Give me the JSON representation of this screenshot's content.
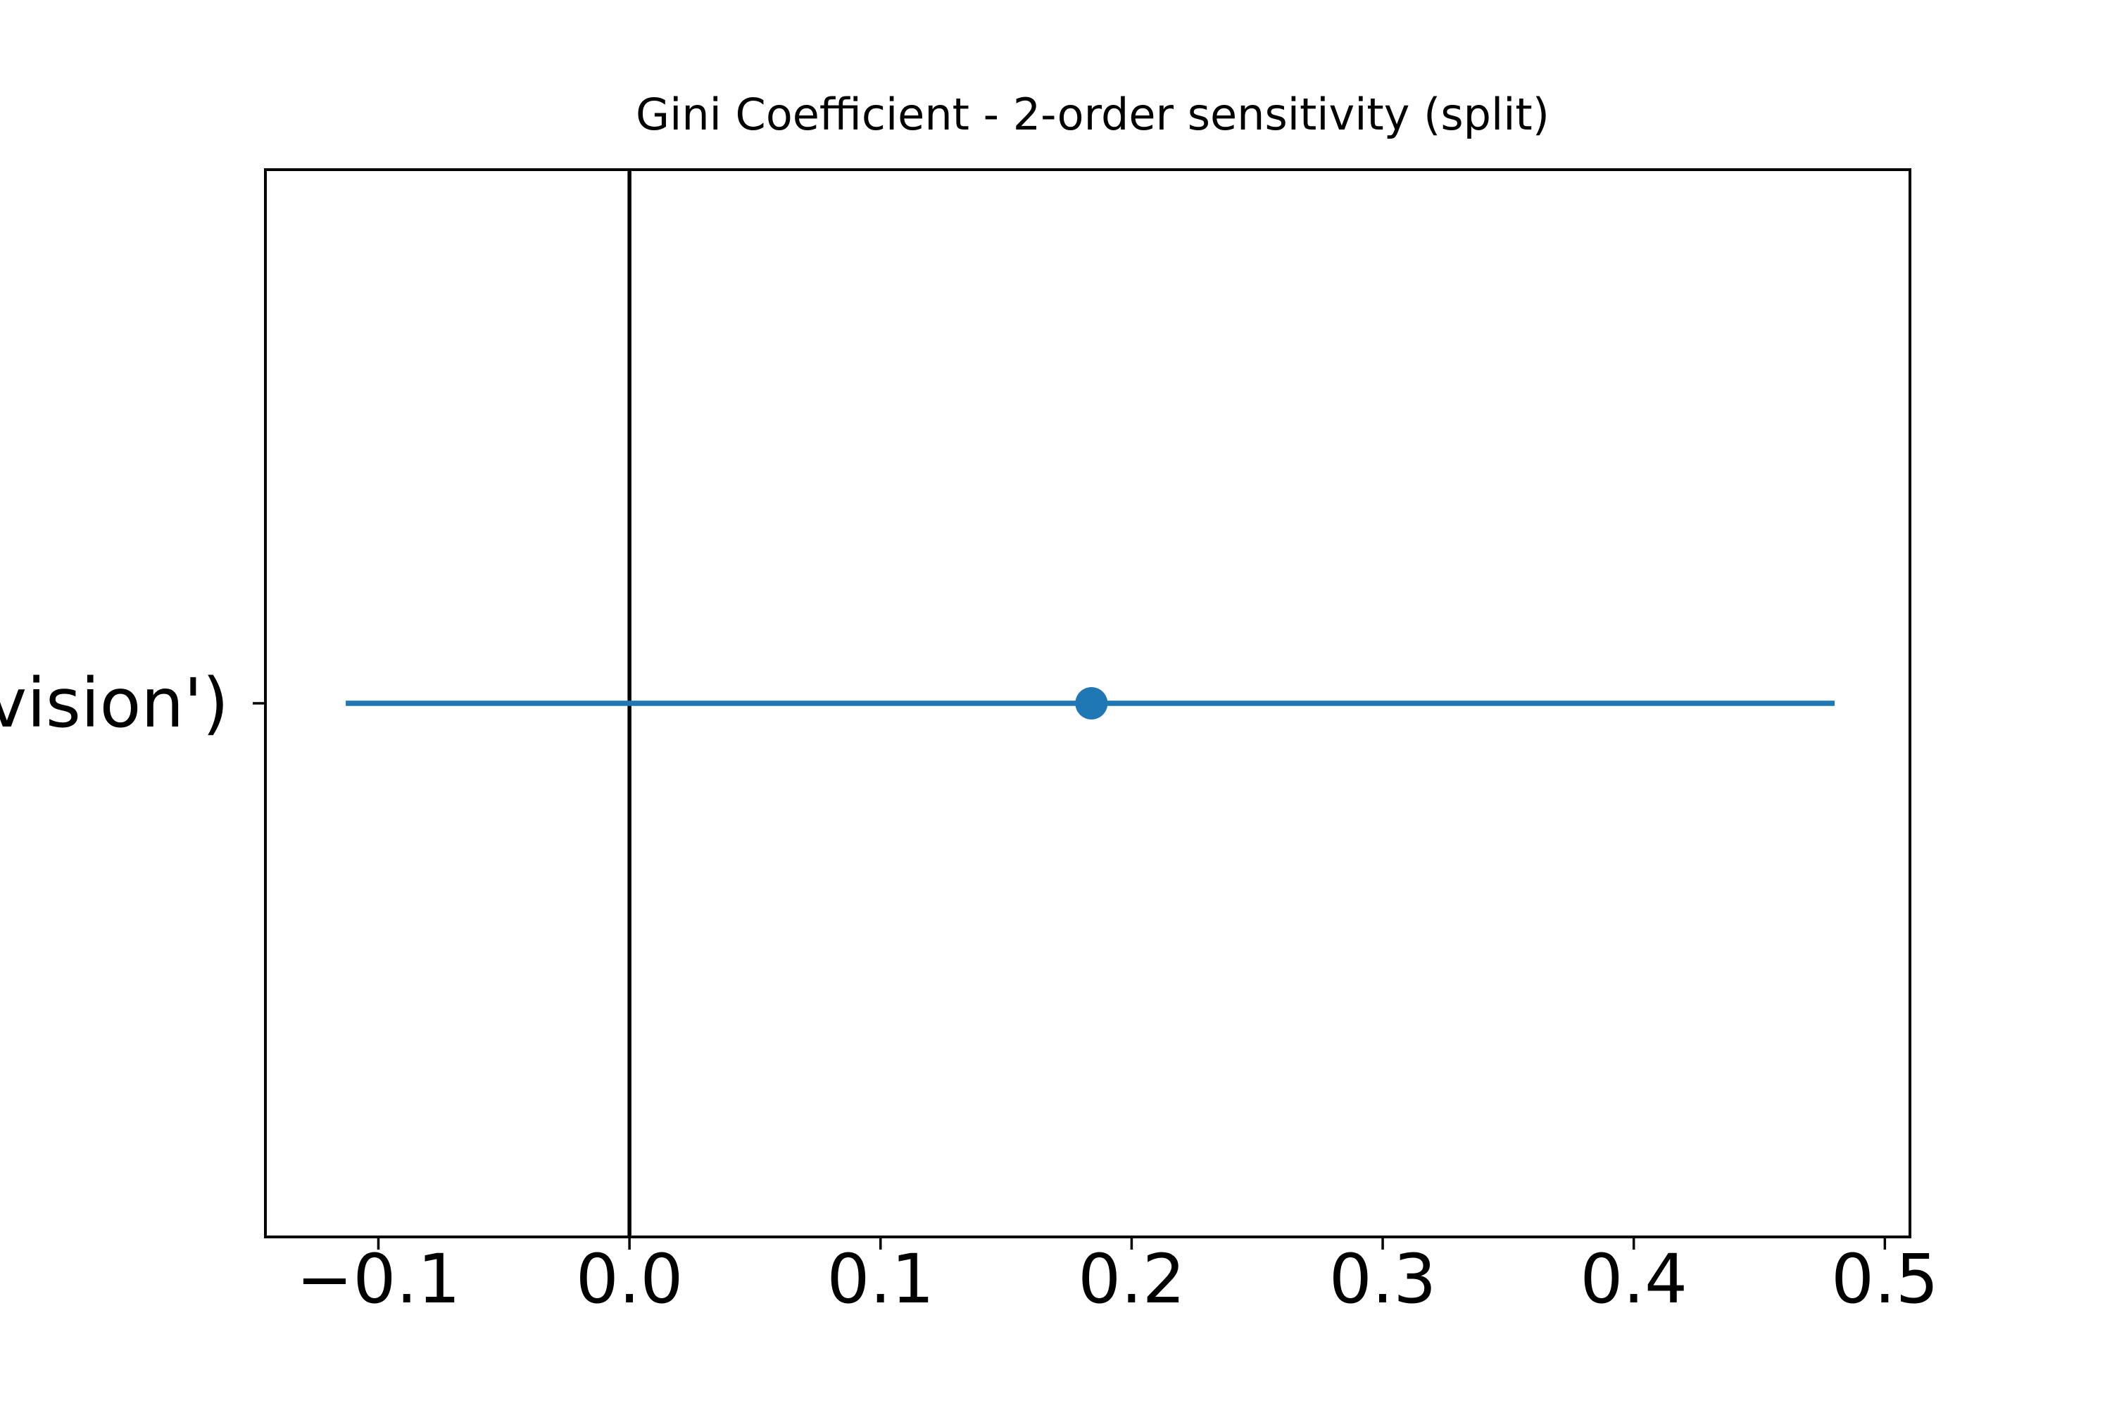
{
  "chart_data": {
    "type": "scatter",
    "title": "Gini Coefficient - 2-order sensitivity (split)",
    "xlabel": "",
    "ylabel": "",
    "xlim": [
      -0.145,
      0.51
    ],
    "x_ticks": [
      -0.1,
      0.0,
      0.1,
      0.2,
      0.3,
      0.4,
      0.5
    ],
    "x_tick_labels": [
      "−0.1",
      "0.0",
      "0.1",
      "0.2",
      "0.3",
      "0.4",
      "0.5"
    ],
    "y_tick_labels": [
      "vision')"
    ],
    "reference_line_x": 0.0,
    "grid": false,
    "series": [
      {
        "color": "#1f77b4",
        "points": [
          {
            "label": "vision')",
            "value": 0.184,
            "lower": -0.113,
            "upper": 0.48
          }
        ]
      }
    ]
  }
}
